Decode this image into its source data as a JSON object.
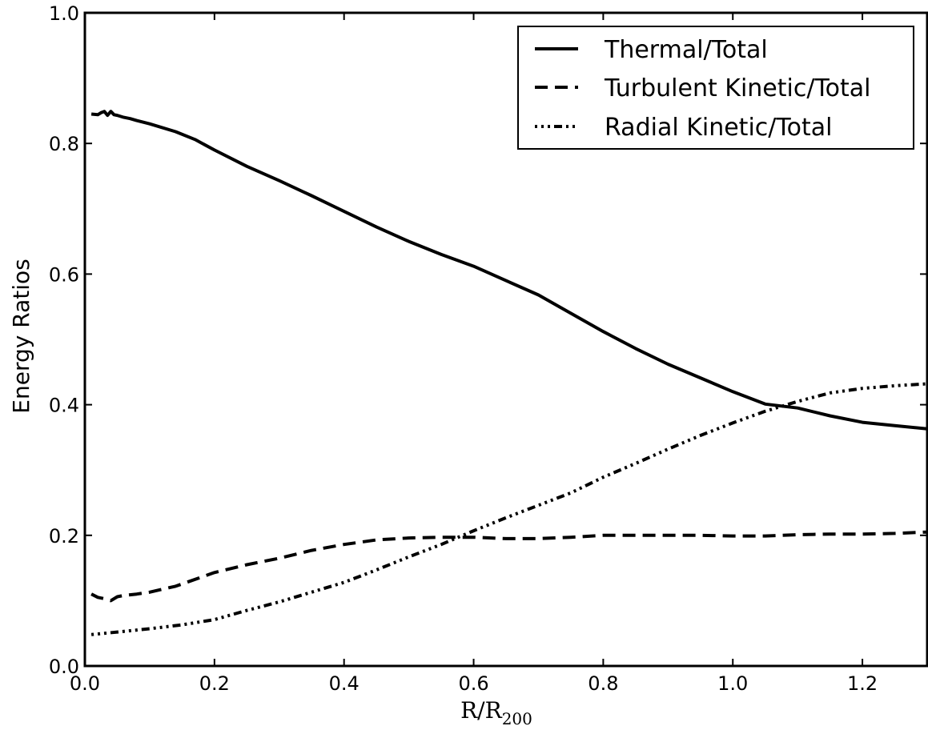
{
  "chart_data": {
    "type": "line",
    "xlabel_main": "R/R",
    "xlabel_sub": "200",
    "ylabel": "Energy Ratios",
    "xlim": [
      0.0,
      1.3
    ],
    "ylim": [
      0.0,
      1.0
    ],
    "x_ticks": [
      0.0,
      0.2,
      0.4,
      0.6,
      0.8,
      1.0,
      1.2
    ],
    "x_tick_labels": [
      "0.0",
      "0.2",
      "0.4",
      "0.6",
      "0.8",
      "1.0",
      "1.2"
    ],
    "y_ticks": [
      0.0,
      0.2,
      0.4,
      0.6,
      0.8,
      1.0
    ],
    "y_tick_labels": [
      "0.0",
      "0.2",
      "0.4",
      "0.6",
      "0.8",
      "1.0"
    ],
    "grid": false,
    "legend_position": "top-right",
    "series": [
      {
        "name": "Thermal/Total",
        "style": "solid",
        "x": [
          0.01,
          0.02,
          0.025,
          0.03,
          0.035,
          0.04,
          0.045,
          0.05,
          0.06,
          0.07,
          0.08,
          0.1,
          0.14,
          0.17,
          0.2,
          0.25,
          0.3,
          0.35,
          0.4,
          0.45,
          0.5,
          0.55,
          0.6,
          0.65,
          0.7,
          0.75,
          0.8,
          0.85,
          0.9,
          0.95,
          1.0,
          1.05,
          1.1,
          1.15,
          1.2,
          1.25,
          1.3
        ],
        "y": [
          0.845,
          0.844,
          0.847,
          0.849,
          0.843,
          0.849,
          0.844,
          0.843,
          0.84,
          0.838,
          0.835,
          0.83,
          0.818,
          0.806,
          0.79,
          0.765,
          0.743,
          0.72,
          0.696,
          0.672,
          0.65,
          0.63,
          0.612,
          0.59,
          0.568,
          0.54,
          0.512,
          0.486,
          0.462,
          0.441,
          0.42,
          0.401,
          0.395,
          0.383,
          0.373,
          0.368,
          0.363
        ]
      },
      {
        "name": "Turbulent Kinetic/Total",
        "style": "dashed",
        "x": [
          0.01,
          0.02,
          0.03,
          0.04,
          0.05,
          0.06,
          0.08,
          0.1,
          0.14,
          0.2,
          0.25,
          0.3,
          0.35,
          0.4,
          0.45,
          0.5,
          0.55,
          0.6,
          0.65,
          0.7,
          0.75,
          0.8,
          0.85,
          0.9,
          0.95,
          1.0,
          1.05,
          1.1,
          1.15,
          1.2,
          1.25,
          1.3
        ],
        "y": [
          0.11,
          0.105,
          0.103,
          0.1,
          0.106,
          0.108,
          0.11,
          0.113,
          0.122,
          0.143,
          0.155,
          0.165,
          0.177,
          0.186,
          0.193,
          0.196,
          0.197,
          0.197,
          0.195,
          0.195,
          0.197,
          0.2,
          0.2,
          0.2,
          0.2,
          0.199,
          0.199,
          0.201,
          0.202,
          0.202,
          0.203,
          0.205
        ]
      },
      {
        "name": "Radial Kinetic/Total",
        "style": "dashdot",
        "x": [
          0.01,
          0.05,
          0.1,
          0.15,
          0.2,
          0.25,
          0.3,
          0.35,
          0.4,
          0.45,
          0.5,
          0.55,
          0.6,
          0.65,
          0.7,
          0.75,
          0.8,
          0.85,
          0.9,
          0.95,
          1.0,
          1.05,
          1.1,
          1.15,
          1.2,
          1.25,
          1.3
        ],
        "y": [
          0.048,
          0.052,
          0.057,
          0.063,
          0.071,
          0.085,
          0.098,
          0.113,
          0.128,
          0.147,
          0.167,
          0.186,
          0.207,
          0.227,
          0.246,
          0.265,
          0.289,
          0.31,
          0.332,
          0.353,
          0.372,
          0.39,
          0.405,
          0.418,
          0.425,
          0.429,
          0.432
        ]
      }
    ]
  }
}
